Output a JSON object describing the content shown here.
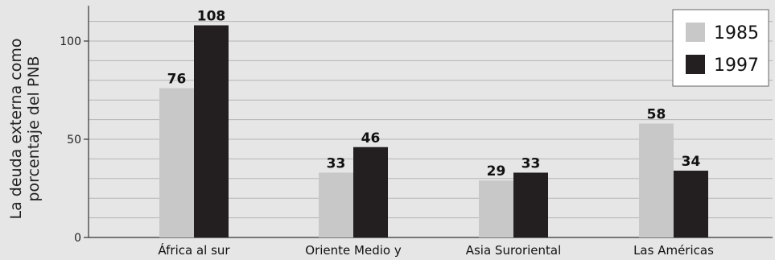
{
  "chart_data": {
    "type": "bar",
    "categories": [
      "África al sur",
      "Oriente Medio y",
      "Asia Suroriental",
      "Las Américas"
    ],
    "series": [
      {
        "name": "1985",
        "values": [
          76,
          33,
          29,
          58
        ],
        "color": "#c8c8c8"
      },
      {
        "name": "1997",
        "values": [
          108,
          46,
          33,
          34
        ],
        "color": "#231f20"
      }
    ],
    "ylabel_lines": [
      "La deuda externa como",
      "porcentaje del PNB"
    ],
    "yticks": [
      0,
      50,
      100
    ],
    "ylim": [
      0,
      118
    ],
    "grid": true,
    "legend_position": "top-right"
  }
}
